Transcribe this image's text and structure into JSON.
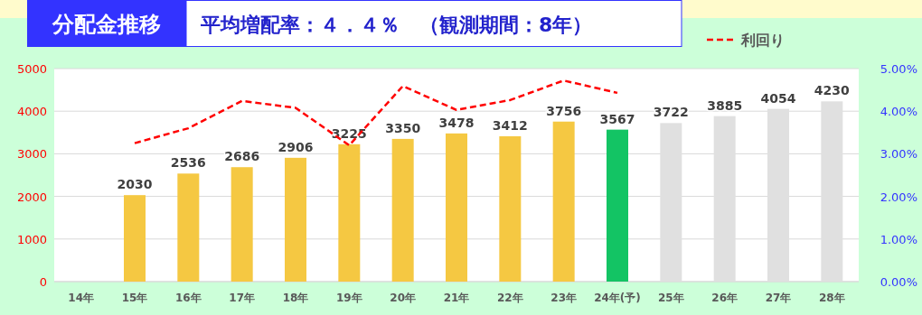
{
  "chart_data": {
    "type": "bar",
    "title": "分配金推移",
    "subtitle": "平均増配率：４．４％　（観測期間：8年）",
    "categories": [
      "14年",
      "15年",
      "16年",
      "17年",
      "18年",
      "19年",
      "20年",
      "21年",
      "22年",
      "23年",
      "24年(予)",
      "25年",
      "26年",
      "27年",
      "28年"
    ],
    "series": [
      {
        "colors": [
          null,
          "#f5c842",
          "#f5c842",
          "#f5c842",
          "#f5c842",
          "#f5c842",
          "#f5c842",
          "#f5c842",
          "#f5c842",
          "#f5c842",
          "#13c464",
          "#e0e0e0",
          "#e0e0e0",
          "#e0e0e0",
          "#e0e0e0"
        ],
        "values": [
          null,
          2030,
          2536,
          2686,
          2906,
          3225,
          3350,
          3478,
          3412,
          3756,
          3567,
          3722,
          3885,
          4054,
          4230
        ],
        "value_labels": [
          null,
          "2030",
          "2536",
          "2686",
          "2906",
          "3225",
          "3350",
          "3478",
          "3412",
          "3756",
          "3567",
          "3722",
          "3885",
          "4054",
          "4230"
        ]
      },
      {
        "type": "line",
        "name": "利回り",
        "color": "#ff0000",
        "axis": "y2",
        "line_style": "dashed",
        "values": [
          null,
          3.25,
          3.6,
          4.24,
          4.08,
          3.2,
          4.59,
          4.03,
          4.26,
          4.72,
          4.43,
          null,
          null,
          null,
          null
        ]
      }
    ],
    "ylim": [
      0,
      5000
    ],
    "yticks": [
      0,
      1000,
      2000,
      3000,
      4000,
      5000
    ],
    "y2lim": [
      0,
      5
    ],
    "y2ticks": [
      {
        "value": 0,
        "label": "0.00%"
      },
      {
        "value": 1,
        "label": "1.00%"
      },
      {
        "value": 2,
        "label": "2.00%"
      },
      {
        "value": 3,
        "label": "3.00%"
      },
      {
        "value": 4,
        "label": "4.00%"
      },
      {
        "value": 5,
        "label": "5.00%"
      }
    ],
    "grid": "y",
    "legend": "top right"
  }
}
